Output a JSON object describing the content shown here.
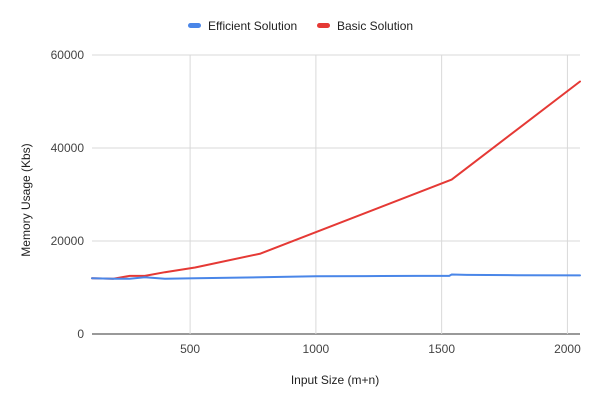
{
  "chart_data": {
    "type": "line",
    "title": "",
    "xlabel": "Input Size (m+n)",
    "ylabel": "Memory Usage (Kbs)",
    "xlim": [
      110,
      2050
    ],
    "ylim": [
      0,
      60000
    ],
    "x_ticks": [
      500,
      1000,
      1500,
      2000
    ],
    "y_ticks": [
      0,
      20000,
      40000,
      60000
    ],
    "grid": true,
    "legend_position": "top-center",
    "series": [
      {
        "name": "Efficient Solution",
        "color": "#4A86E8",
        "points": [
          [
            110,
            12000
          ],
          [
            195,
            11900
          ],
          [
            260,
            11900
          ],
          [
            320,
            12200
          ],
          [
            400,
            11900
          ],
          [
            520,
            12000
          ],
          [
            780,
            12200
          ],
          [
            1000,
            12400
          ],
          [
            1200,
            12450
          ],
          [
            1400,
            12500
          ],
          [
            1530,
            12500
          ],
          [
            1540,
            12800
          ],
          [
            1600,
            12700
          ],
          [
            1800,
            12650
          ],
          [
            2050,
            12600
          ]
        ]
      },
      {
        "name": "Basic Solution",
        "color": "#E53935",
        "points": [
          [
            110,
            12000
          ],
          [
            195,
            11900
          ],
          [
            260,
            12500
          ],
          [
            320,
            12500
          ],
          [
            400,
            13300
          ],
          [
            520,
            14300
          ],
          [
            780,
            17300
          ],
          [
            1540,
            33200
          ],
          [
            2050,
            54300
          ]
        ]
      }
    ]
  }
}
